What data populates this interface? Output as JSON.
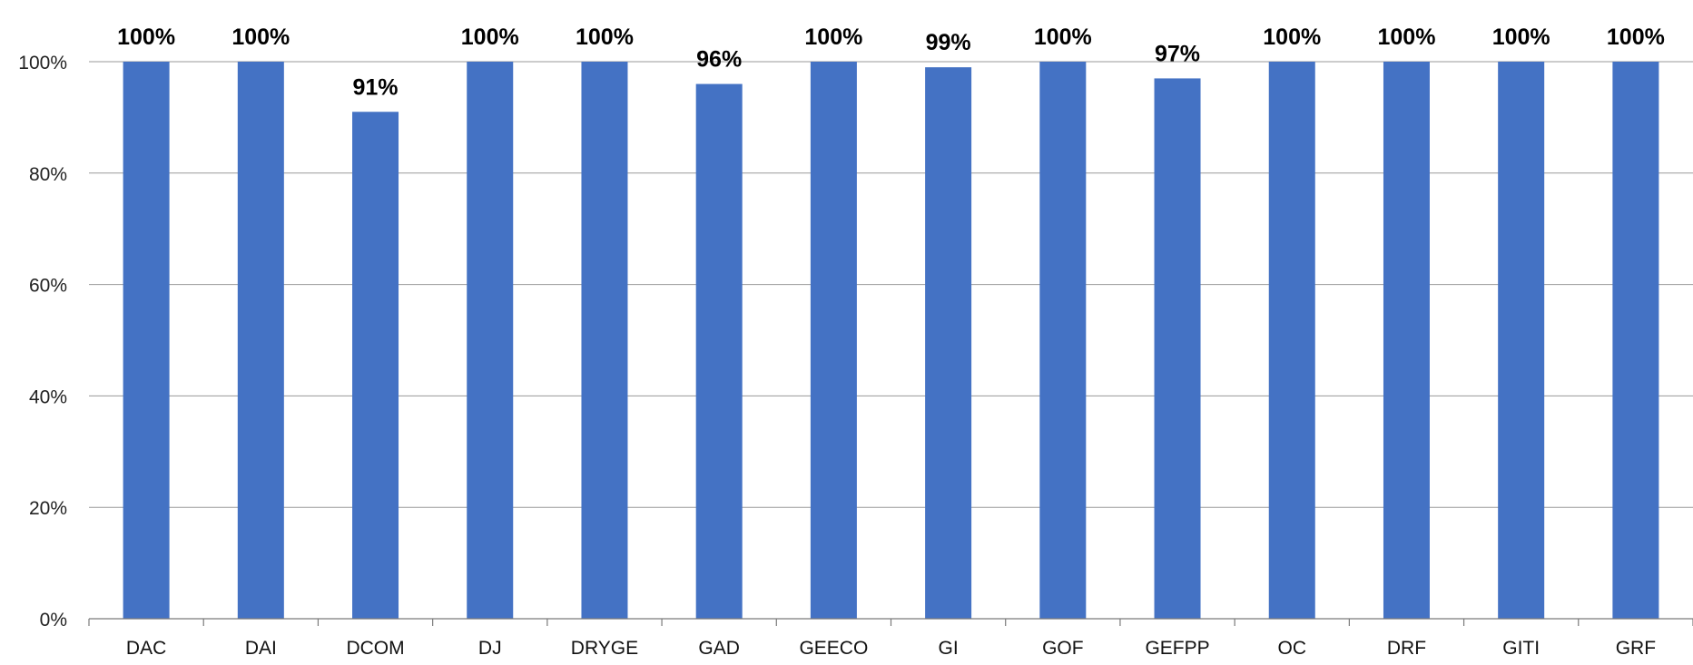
{
  "chart_data": {
    "type": "bar",
    "categories": [
      "DAC",
      "DAI",
      "DCOM",
      "DJ",
      "DRYGE",
      "GAD",
      "GEECO",
      "GI",
      "GOF",
      "GEFPP",
      "OC",
      "DRF",
      "GITI",
      "GRF"
    ],
    "values": [
      100,
      100,
      91,
      100,
      100,
      96,
      100,
      99,
      100,
      97,
      100,
      100,
      100,
      100
    ],
    "data_labels": [
      "100%",
      "100%",
      "91%",
      "100%",
      "100%",
      "96%",
      "100%",
      "99%",
      "100%",
      "97%",
      "100%",
      "100%",
      "100%",
      "100%"
    ],
    "ylim": [
      0,
      100
    ],
    "y_ticks": [
      {
        "value": 0,
        "label": "0%"
      },
      {
        "value": 20,
        "label": "20%"
      },
      {
        "value": 40,
        "label": "40%"
      },
      {
        "value": 60,
        "label": "60%"
      },
      {
        "value": 80,
        "label": "80%"
      },
      {
        "value": 100,
        "label": "100%"
      }
    ],
    "title": "",
    "xlabel": "",
    "ylabel": "",
    "grid": true,
    "legend": "none",
    "bar_color": "#4472C4"
  }
}
